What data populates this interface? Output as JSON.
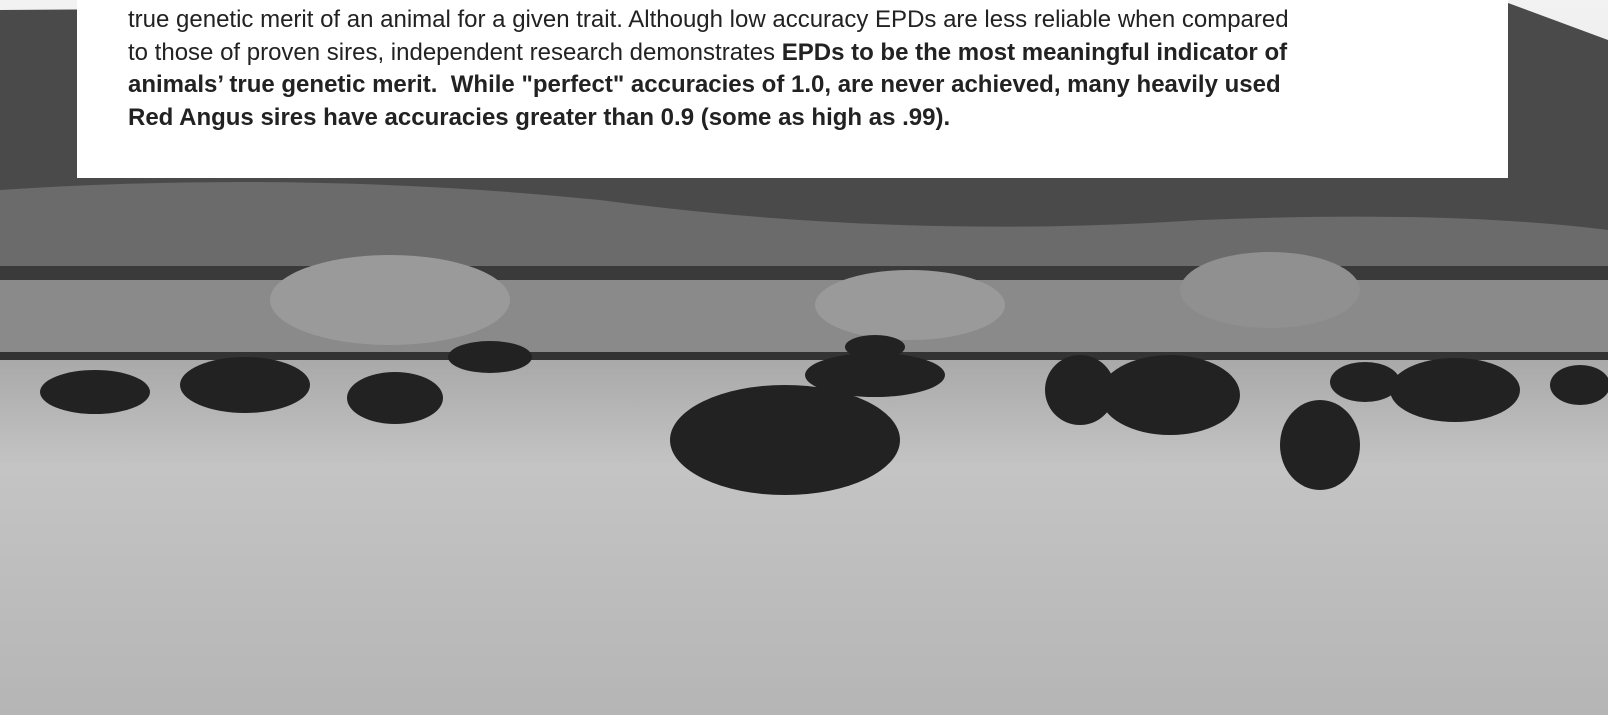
{
  "lines": [
    {
      "text": "true genetic merit of an animal for a given trait. Although low accuracy EPDs are less reliable when compared"
    },
    {
      "text": "to those of proven sires, independent research demonstrates ",
      "bold": "EPDs to be the most meaningful indicator of"
    },
    {
      "bold": "animals’ true genetic merit.  While \"perfect\" accuracies of 1.0, are never achieved, many heavily used"
    },
    {
      "bold": "Red Angus sires have accuracies greater than 0.9 (some as high as .99)."
    }
  ]
}
